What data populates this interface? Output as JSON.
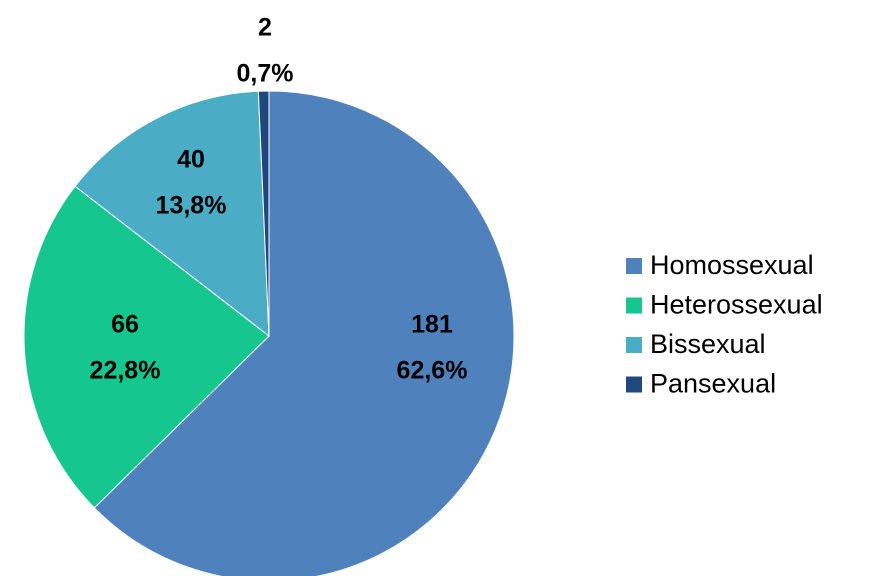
{
  "chart_data": {
    "type": "pie",
    "categories": [
      "Homossexual",
      "Heterossexual",
      "Bissexual",
      "Pansexual"
    ],
    "values": [
      181,
      66,
      40,
      2
    ],
    "percentages": [
      62.6,
      22.8,
      13.8,
      0.7
    ],
    "percentage_labels": [
      "62,6%",
      "22,8%",
      "13,8%",
      "0,7%"
    ],
    "colors": [
      "#4f81bd",
      "#15c68f",
      "#4bacc6",
      "#1f497d"
    ],
    "legend": "right"
  }
}
